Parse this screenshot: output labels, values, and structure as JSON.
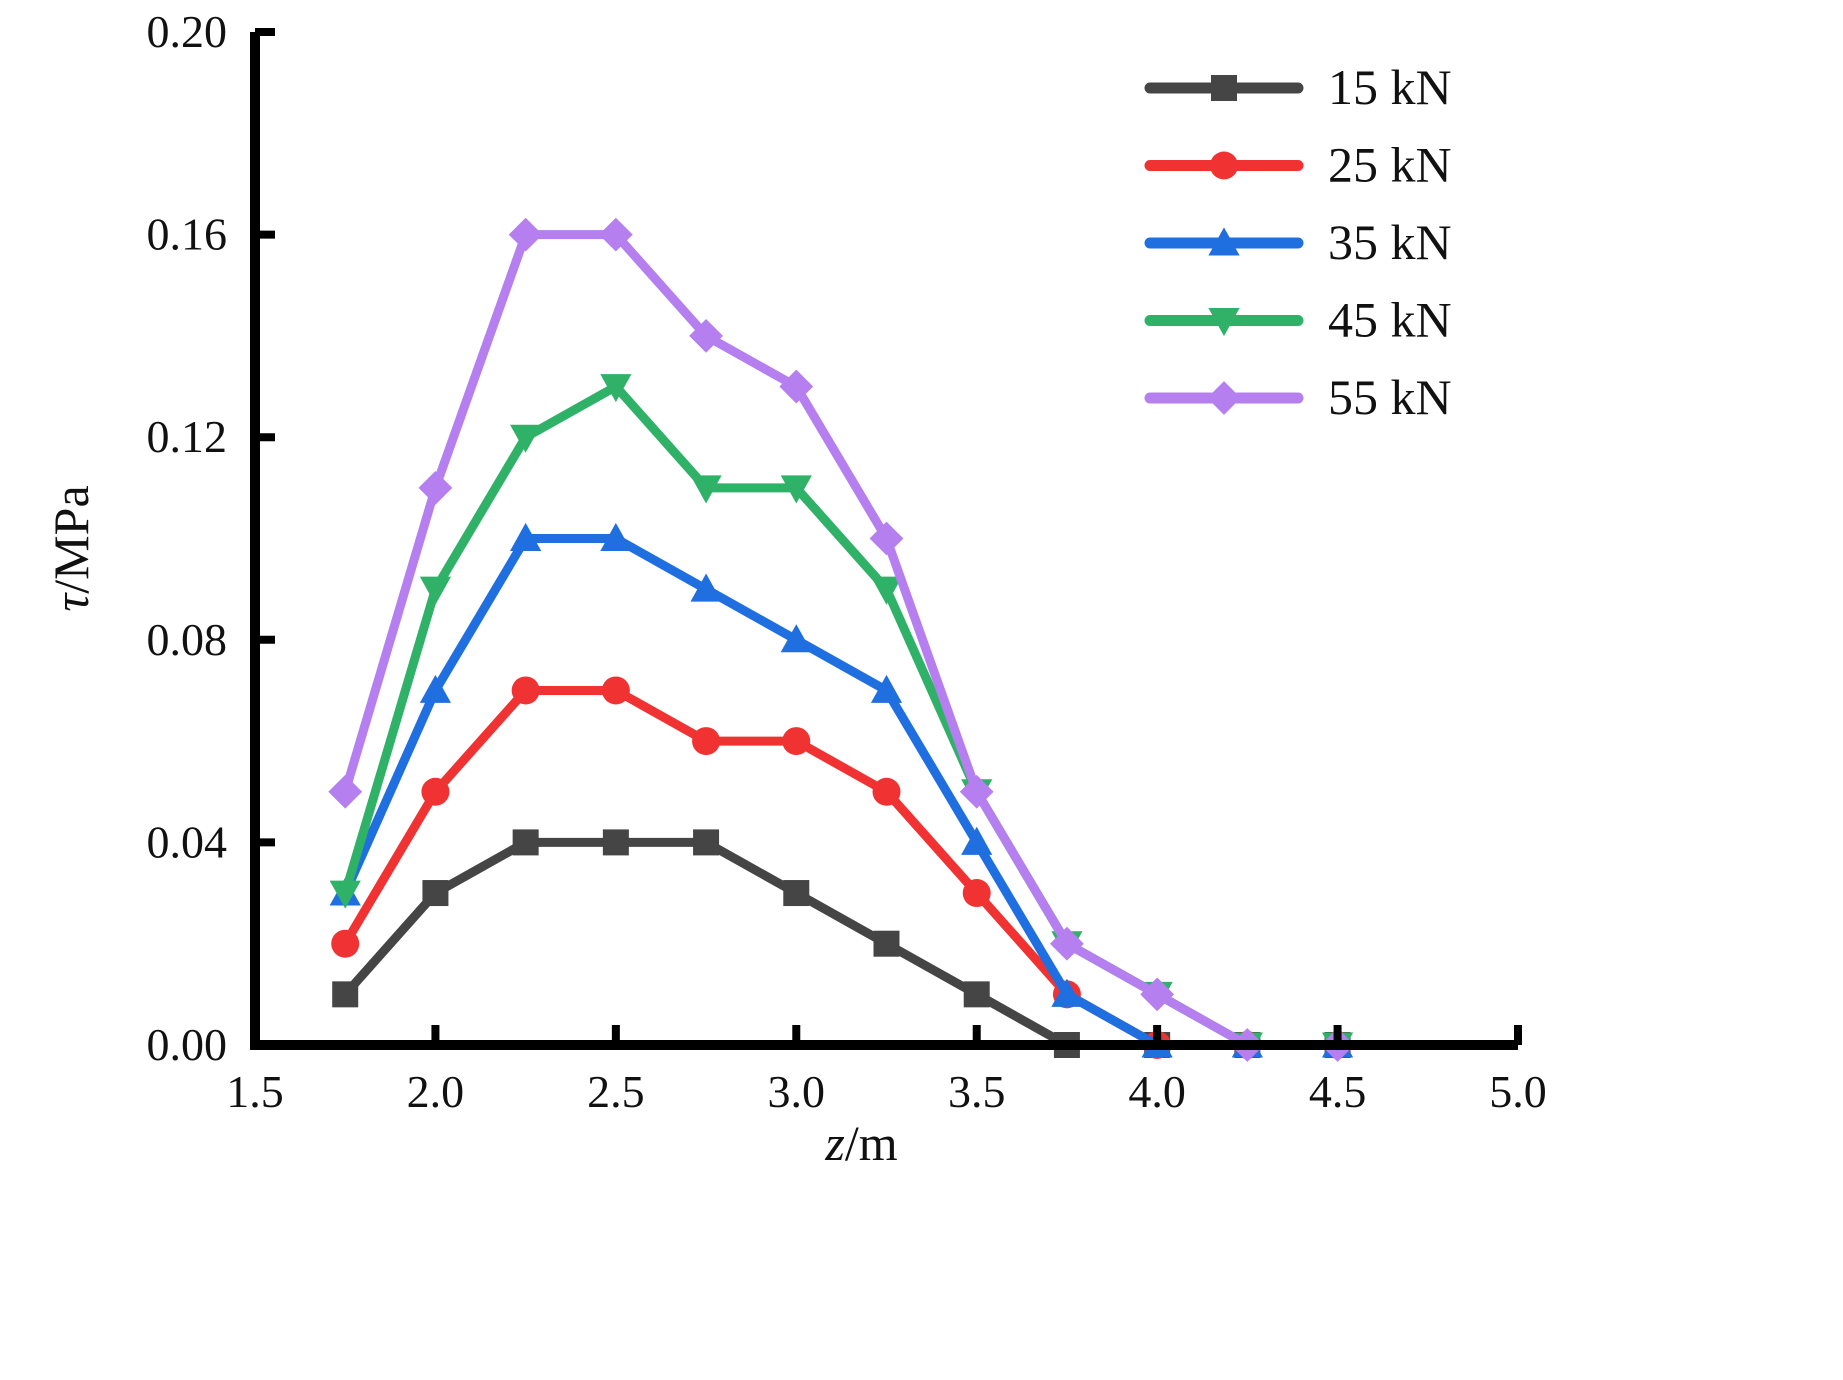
{
  "chart_data": {
    "type": "line",
    "title": "",
    "xlabel_italic": "z",
    "xlabel_unit": "/m",
    "ylabel_italic": "τ",
    "ylabel_unit": "/MPa",
    "xlim": [
      1.5,
      5.0
    ],
    "ylim": [
      0.0,
      0.2
    ],
    "xticks": [
      1.5,
      2.0,
      2.5,
      3.0,
      3.5,
      4.0,
      4.5,
      5.0
    ],
    "xtick_labels": [
      "1.5",
      "2.0",
      "2.5",
      "3.0",
      "3.5",
      "4.0",
      "4.5",
      "5.0"
    ],
    "yticks": [
      0.0,
      0.04,
      0.08,
      0.12,
      0.16,
      0.2
    ],
    "ytick_labels": [
      "0.00",
      "0.04",
      "0.08",
      "0.12",
      "0.16",
      "0.20"
    ],
    "grid": false,
    "legend_position": "top-right",
    "series": [
      {
        "name": "15 kN",
        "color": "#454545",
        "marker": "square",
        "x": [
          1.75,
          2.0,
          2.25,
          2.5,
          2.75,
          3.0,
          3.25,
          3.5,
          3.75,
          4.0,
          4.25,
          4.5
        ],
        "y": [
          0.01,
          0.03,
          0.04,
          0.04,
          0.04,
          0.03,
          0.02,
          0.01,
          0.0,
          0.0,
          0.0,
          0.0
        ]
      },
      {
        "name": "25 kN",
        "color": "#f03232",
        "marker": "circle",
        "x": [
          1.75,
          2.0,
          2.25,
          2.5,
          2.75,
          3.0,
          3.25,
          3.5,
          3.75,
          4.0,
          4.25,
          4.5
        ],
        "y": [
          0.02,
          0.05,
          0.07,
          0.07,
          0.06,
          0.06,
          0.05,
          0.03,
          0.01,
          0.0,
          0.0,
          0.0
        ]
      },
      {
        "name": "35 kN",
        "color": "#1f6fe0",
        "marker": "triangle-up",
        "x": [
          1.75,
          2.0,
          2.25,
          2.5,
          2.75,
          3.0,
          3.25,
          3.5,
          3.75,
          4.0,
          4.25,
          4.5
        ],
        "y": [
          0.03,
          0.07,
          0.1,
          0.1,
          0.09,
          0.08,
          0.07,
          0.04,
          0.01,
          0.0,
          0.0,
          0.0
        ]
      },
      {
        "name": "45 kN",
        "color": "#2fb268",
        "marker": "triangle-down",
        "x": [
          1.75,
          2.0,
          2.25,
          2.5,
          2.75,
          3.0,
          3.25,
          3.5,
          3.75,
          4.0,
          4.25,
          4.5
        ],
        "y": [
          0.03,
          0.09,
          0.12,
          0.13,
          0.11,
          0.11,
          0.09,
          0.05,
          0.02,
          0.01,
          0.0,
          0.0
        ]
      },
      {
        "name": "55 kN",
        "color": "#b57ff0",
        "marker": "diamond",
        "x": [
          1.75,
          2.0,
          2.25,
          2.5,
          2.75,
          3.0,
          3.25,
          3.5,
          3.75,
          4.0,
          4.25,
          4.5
        ],
        "y": [
          0.05,
          0.11,
          0.16,
          0.16,
          0.14,
          0.13,
          0.1,
          0.05,
          0.02,
          0.01,
          0.0,
          0.0
        ]
      }
    ]
  }
}
